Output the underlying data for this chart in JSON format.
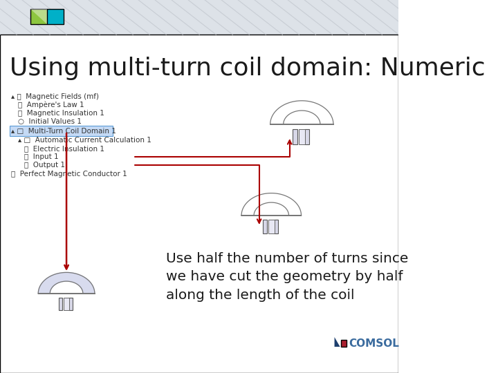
{
  "title": "Using multi-turn coil domain: Numeric",
  "title_fontsize": 26,
  "title_color": "#1a1a1a",
  "title_font": "DejaVu Sans",
  "bg_color": "#ffffff",
  "header_bg": "#e8eaec",
  "annotation_text": "Use half the number of turns since\nwe have cut the geometry by half\nalong the length of the coil",
  "annotation_fontsize": 14.5,
  "annotation_color": "#1a1a1a",
  "comsol_text": "COMSOL",
  "comsol_fontsize": 11,
  "comsol_color": "#3a6b9e",
  "arrow_color": "#aa0000",
  "tree_color": "#333333",
  "tree_fontsize": 7.5,
  "highlight_color": "#5b9bd5",
  "highlight_bg": "#c5daf5",
  "logo_green": "#8dc63f",
  "logo_teal": "#00b0c8",
  "logo_triangle_color": "#1e3f6e",
  "logo_square_color": "#aa1e2e"
}
